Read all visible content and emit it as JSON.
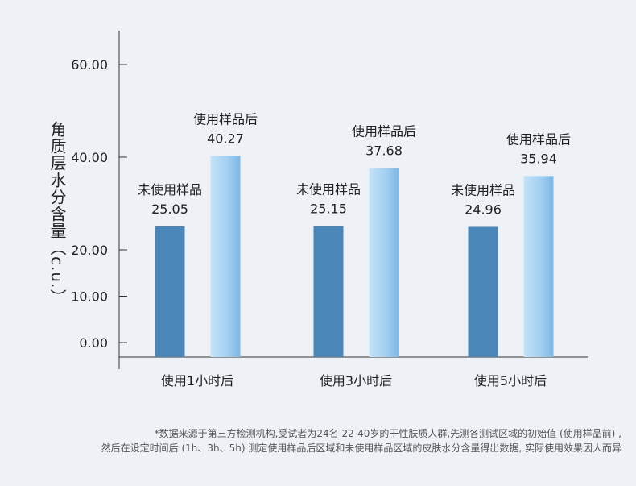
{
  "chart_data": {
    "type": "bar",
    "categories": [
      "使用1小时后",
      "使用3小时后",
      "使用5小时后"
    ],
    "series": [
      {
        "name": "未使用样品",
        "values": [
          25.05,
          25.15,
          24.96
        ],
        "color": "#4a86b8"
      },
      {
        "name": "使用样品后",
        "values": [
          40.27,
          37.68,
          35.94
        ],
        "color": "#9fcdf0"
      }
    ],
    "ylabel": "角质层水分含量（c.u.）",
    "ylim": [
      0,
      60
    ],
    "yticks": [
      "0.00",
      "10.00",
      "20.00",
      "40.00",
      "60.00"
    ],
    "grid": false,
    "legend": "none"
  },
  "footnote": {
    "line1": "*数据来源于第三方检测机构,受试者为24名 22-40岁的干性肤质人群,先测各测试区域的初始值 (使用样品前) ,",
    "line2": "然后在设定时间后 (1h、3h、5h) 测定使用样品后区域和未使用样品区域的皮肤水分含量得出数据, 实际使用效果因人而异"
  }
}
